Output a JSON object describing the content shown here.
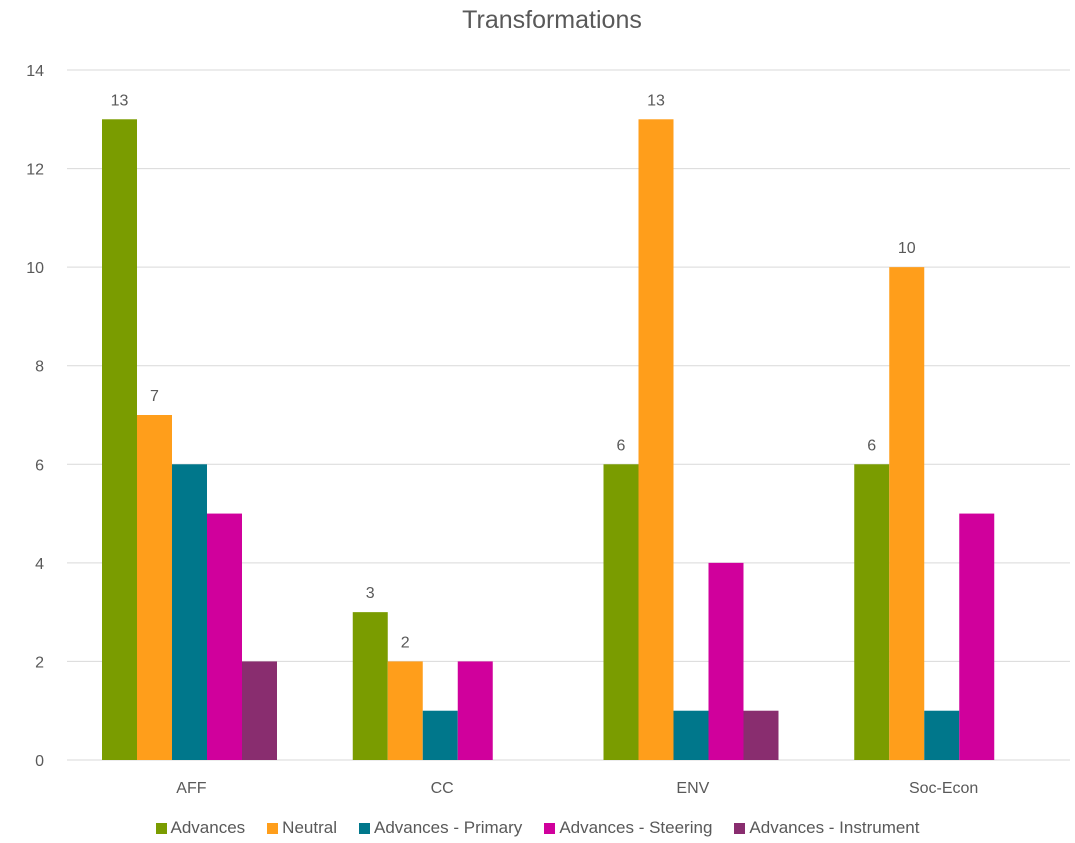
{
  "chart_data": {
    "type": "bar",
    "title": "Transformations",
    "xlabel": "",
    "ylabel": "",
    "ylim": [
      0,
      14
    ],
    "y_ticks": [
      0,
      2,
      4,
      6,
      8,
      10,
      12,
      14
    ],
    "grid": true,
    "legend_position": "bottom",
    "categories": [
      "AFF",
      "CC",
      "ENV",
      "Soc-Econ"
    ],
    "series": [
      {
        "name": "Advances",
        "color": "#7a9c00",
        "values": [
          13,
          3,
          6,
          6
        ],
        "labels": [
          "13",
          "3",
          "6",
          "6"
        ]
      },
      {
        "name": "Neutral",
        "color": "#ff9e1b",
        "values": [
          7,
          2,
          13,
          10
        ],
        "labels": [
          "7",
          "2",
          "13",
          "10"
        ]
      },
      {
        "name": "Advances - Primary",
        "color": "#00778b",
        "values": [
          6,
          1,
          1,
          1
        ],
        "labels": [
          "",
          "",
          "",
          ""
        ]
      },
      {
        "name": "Advances - Steering",
        "color": "#d0009c",
        "values": [
          5,
          2,
          4,
          5
        ],
        "labels": [
          "",
          "",
          "",
          ""
        ]
      },
      {
        "name": "Advances - Instrument",
        "color": "#892d6f",
        "values": [
          2,
          0,
          1,
          0
        ],
        "labels": [
          "",
          "",
          "",
          ""
        ]
      }
    ]
  }
}
